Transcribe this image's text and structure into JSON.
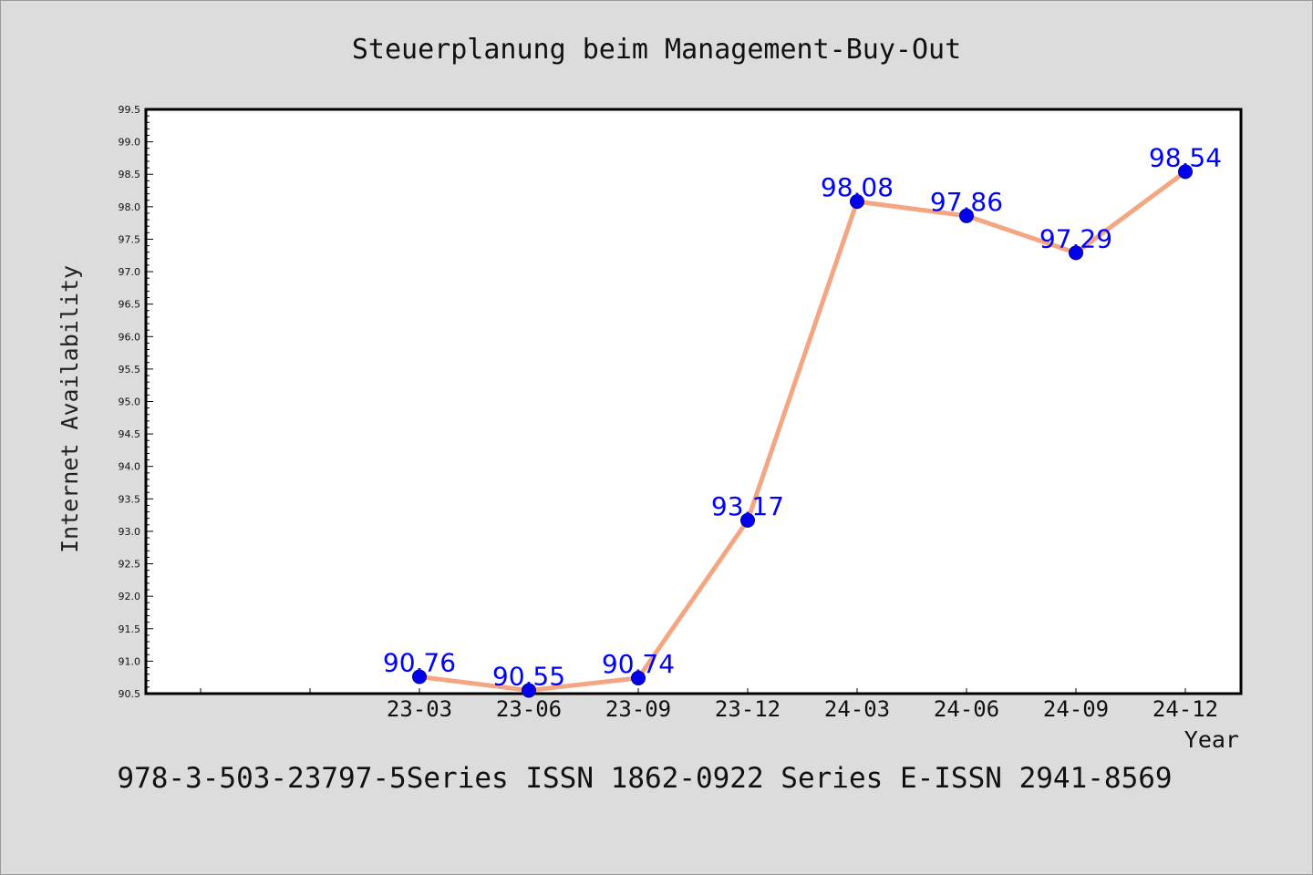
{
  "chart_data": {
    "type": "line",
    "title": "Steuerplanung beim Management-Buy-Out",
    "xlabel": "Year",
    "ylabel": "Internet Availability",
    "footer": "978-3-503-23797-5Series ISSN 1862-0922 Series E-ISSN 2941-8569",
    "categories": [
      "23-03",
      "23-06",
      "23-09",
      "23-12",
      "24-03",
      "24-06",
      "24-09",
      "24-12"
    ],
    "values": [
      90.76,
      90.55,
      90.74,
      93.17,
      98.08,
      97.86,
      97.29,
      98.54
    ],
    "data_labels": [
      "90.76",
      "90.55",
      "90.74",
      "93.17",
      "98.08",
      "97.86",
      "97.29",
      "98.54"
    ],
    "ylim": [
      90.5,
      99.5
    ],
    "y_ticks": [
      "90.5",
      "91.0",
      "91.5",
      "92.0",
      "92.5",
      "93.0",
      "93.5",
      "94.0",
      "94.5",
      "95.0",
      "95.5",
      "96.0",
      "96.5",
      "97.0",
      "97.5",
      "98.0",
      "98.5",
      "99.0",
      "99.5"
    ],
    "grid": false,
    "legend": "none",
    "colors": {
      "line": "#f4a582",
      "marker": "#0000ee",
      "label": "#0000ff",
      "plot_bg": "#ffffff",
      "page_bg": "#dcdcdc"
    }
  }
}
